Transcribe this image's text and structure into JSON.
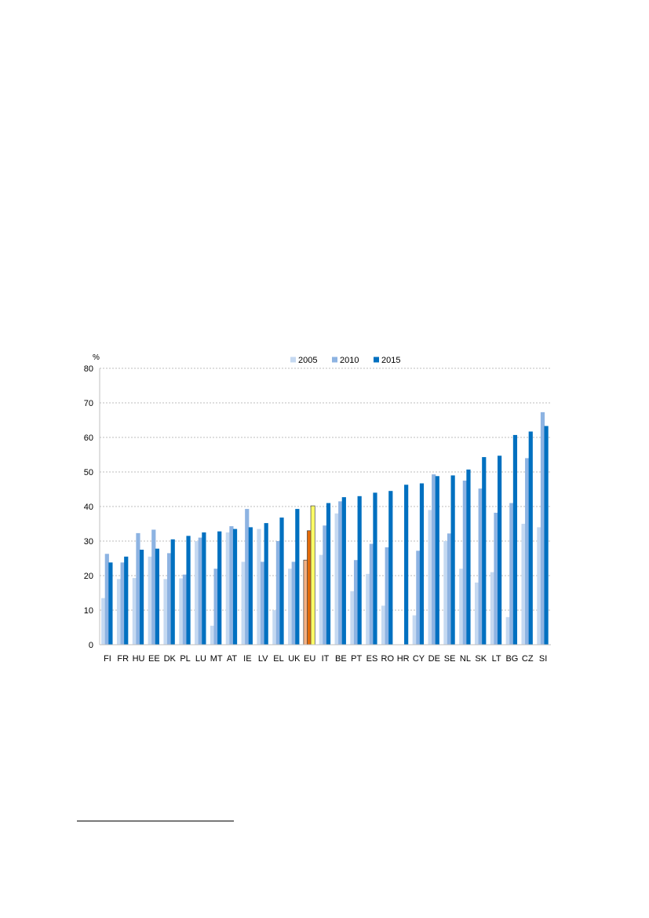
{
  "chart_data": {
    "type": "bar",
    "ylabel": "%",
    "ylim": [
      0,
      80
    ],
    "yticks": [
      0,
      10,
      20,
      30,
      40,
      50,
      60,
      70,
      80
    ],
    "grid": true,
    "legend_position": "top",
    "categories": [
      "FI",
      "FR",
      "HU",
      "EE",
      "DK",
      "PL",
      "LU",
      "MT",
      "AT",
      "IE",
      "LV",
      "EL",
      "UK",
      "EU",
      "IT",
      "BE",
      "PT",
      "ES",
      "RO",
      "HR",
      "CY",
      "DE",
      "SE",
      "NL",
      "SK",
      "LT",
      "BG",
      "CZ",
      "SI"
    ],
    "highlight_category": "EU",
    "series": [
      {
        "name": "2005",
        "color": "#c5d9f1",
        "highlight_color": "#f4b183",
        "values": [
          13.5,
          19,
          19.3,
          25.5,
          19,
          19.2,
          30,
          5.5,
          32.5,
          24,
          33.5,
          10,
          22,
          24.5,
          26,
          38,
          15.5,
          20.5,
          11.3,
          null,
          8.5,
          39,
          30,
          22,
          18,
          21,
          8,
          35,
          34
        ]
      },
      {
        "name": "2010",
        "color": "#8db3e2",
        "highlight_color": "#e46c0a",
        "values": [
          26.3,
          23.8,
          32.3,
          33.3,
          26.5,
          20.3,
          31,
          22,
          34.3,
          39.3,
          24,
          30,
          24,
          33,
          34.5,
          41.5,
          24.5,
          29.2,
          28.2,
          null,
          27.2,
          49.3,
          32.2,
          47.5,
          45.2,
          38.2,
          41,
          54,
          67.3
        ]
      },
      {
        "name": "2015",
        "color": "#0070c0",
        "highlight_color": "#ffff66",
        "values": [
          23.8,
          25.5,
          27.5,
          27.8,
          30.5,
          31.5,
          32.5,
          32.8,
          33.5,
          34,
          35.2,
          36.8,
          39.3,
          40.2,
          41,
          42.7,
          43,
          44,
          44.5,
          46.3,
          46.7,
          48.8,
          49,
          50.7,
          54.3,
          54.7,
          60.7,
          61.7,
          63.3
        ]
      }
    ]
  }
}
